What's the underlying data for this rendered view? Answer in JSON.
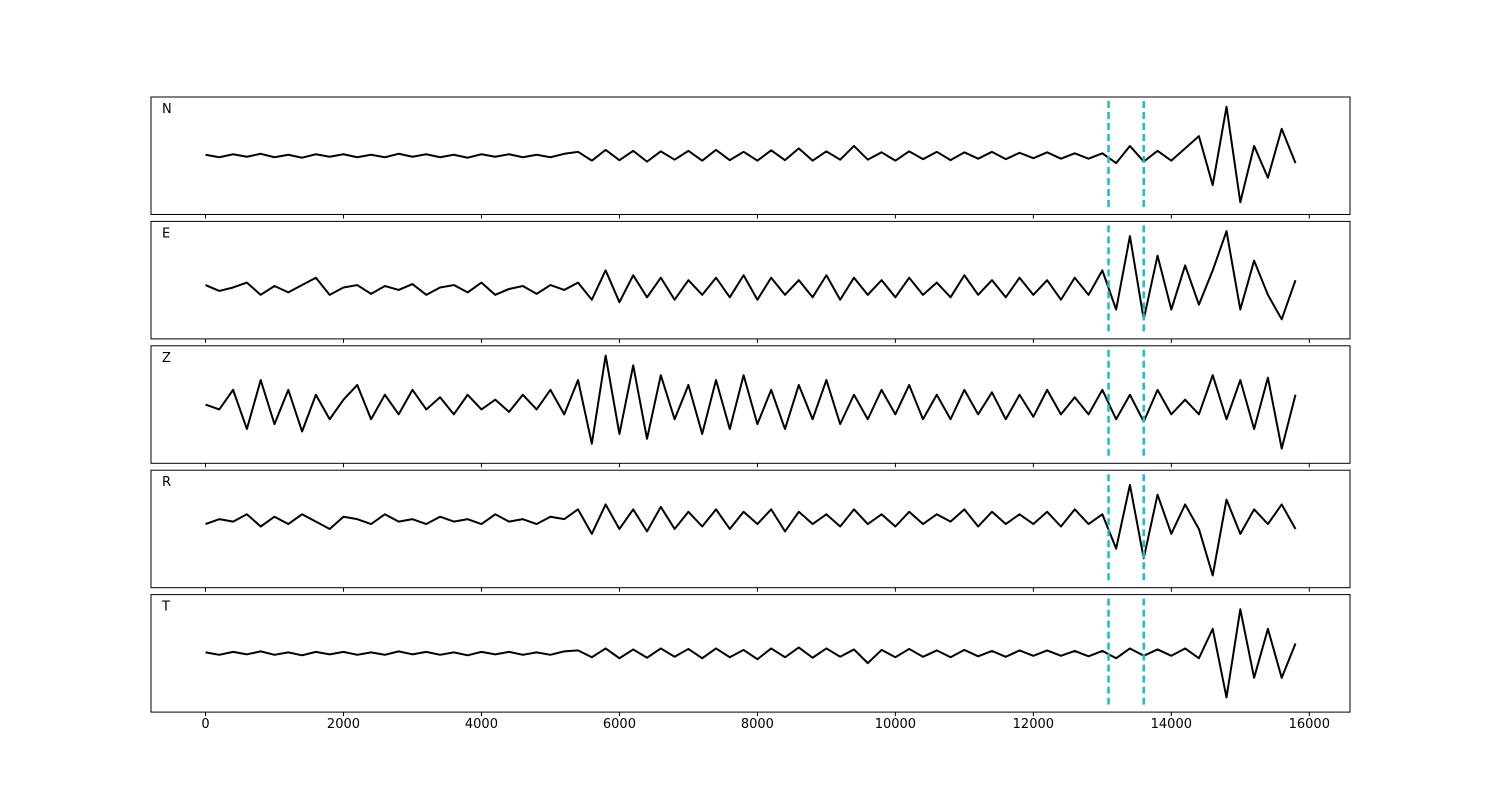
{
  "chart_data": [
    {
      "type": "line",
      "label": "N",
      "x": [
        0,
        200,
        400,
        600,
        800,
        1000,
        1200,
        1400,
        1600,
        1800,
        2000,
        2200,
        2400,
        2600,
        2800,
        3000,
        3200,
        3400,
        3600,
        3800,
        4000,
        4200,
        4400,
        4600,
        4800,
        5000,
        5200,
        5400,
        5600,
        5800,
        6000,
        6200,
        6400,
        6600,
        6800,
        7000,
        7200,
        7400,
        7600,
        7800,
        8000,
        8200,
        8400,
        8600,
        8800,
        9000,
        9200,
        9400,
        9600,
        9800,
        10000,
        10200,
        10400,
        10600,
        10800,
        11000,
        11200,
        11400,
        11600,
        11800,
        12000,
        12200,
        12400,
        12600,
        12800,
        13000,
        13200,
        13400,
        13600,
        13800,
        14000,
        14200,
        14400,
        14600,
        14800,
        15000,
        15200,
        15400,
        15600,
        15800
      ],
      "series": [
        {
          "color": "#000000",
          "values": [
            0.02,
            -0.03,
            0.03,
            -0.02,
            0.04,
            -0.03,
            0.02,
            -0.04,
            0.03,
            -0.02,
            0.03,
            -0.03,
            0.02,
            -0.03,
            0.04,
            -0.02,
            0.03,
            -0.03,
            0.02,
            -0.04,
            0.03,
            -0.02,
            0.03,
            -0.03,
            0.02,
            -0.03,
            0.04,
            0.08,
            -0.1,
            0.12,
            -0.09,
            0.1,
            -0.12,
            0.09,
            -0.08,
            0.1,
            -0.1,
            0.12,
            -0.09,
            0.08,
            -0.1,
            0.11,
            -0.09,
            0.15,
            -0.1,
            0.09,
            -0.08,
            0.2,
            -0.08,
            0.07,
            -0.1,
            0.09,
            -0.07,
            0.08,
            -0.09,
            0.07,
            -0.06,
            0.08,
            -0.07,
            0.06,
            -0.05,
            0.07,
            -0.06,
            0.05,
            -0.06,
            0.05,
            -0.15,
            0.2,
            -0.12,
            0.1,
            -0.1,
            0.15,
            0.4,
            -0.6,
            1.0,
            -0.95,
            0.2,
            -0.45,
            0.55,
            -0.15
          ]
        }
      ],
      "vlines": [
        13090,
        13600
      ],
      "vline_color": "#17becf",
      "xlim": [
        -790,
        16590
      ],
      "ylim": [
        -1.2,
        1.2
      ]
    },
    {
      "type": "line",
      "label": "E",
      "x": [
        0,
        200,
        400,
        600,
        800,
        1000,
        1200,
        1400,
        1600,
        1800,
        2000,
        2200,
        2400,
        2600,
        2800,
        3000,
        3200,
        3400,
        3600,
        3800,
        4000,
        4200,
        4400,
        4600,
        4800,
        5000,
        5200,
        5400,
        5600,
        5800,
        6000,
        6200,
        6400,
        6600,
        6800,
        7000,
        7200,
        7400,
        7600,
        7800,
        8000,
        8200,
        8400,
        8600,
        8800,
        9000,
        9200,
        9400,
        9600,
        9800,
        10000,
        10200,
        10400,
        10600,
        10800,
        11000,
        11200,
        11400,
        11600,
        11800,
        12000,
        12200,
        12400,
        12600,
        12800,
        13000,
        13200,
        13400,
        13600,
        13800,
        14000,
        14200,
        14400,
        14600,
        14800,
        15000,
        15200,
        15400,
        15600,
        15800
      ],
      "series": [
        {
          "color": "#000000",
          "values": [
            -0.1,
            -0.22,
            -0.15,
            -0.05,
            -0.3,
            -0.12,
            -0.25,
            -0.1,
            0.05,
            -0.3,
            -0.15,
            -0.1,
            -0.28,
            -0.12,
            -0.2,
            -0.08,
            -0.3,
            -0.15,
            -0.1,
            -0.25,
            -0.05,
            -0.3,
            -0.18,
            -0.12,
            -0.28,
            -0.1,
            -0.2,
            -0.05,
            -0.4,
            0.2,
            -0.45,
            0.1,
            -0.35,
            0.05,
            -0.4,
            0.0,
            -0.3,
            0.05,
            -0.35,
            0.1,
            -0.4,
            0.05,
            -0.3,
            0.0,
            -0.35,
            0.1,
            -0.4,
            0.05,
            -0.3,
            0.0,
            -0.35,
            0.05,
            -0.3,
            -0.05,
            -0.35,
            0.1,
            -0.3,
            0.0,
            -0.35,
            0.05,
            -0.3,
            0.0,
            -0.4,
            0.05,
            -0.3,
            0.2,
            -0.6,
            0.9,
            -0.8,
            0.5,
            -0.6,
            0.3,
            -0.5,
            0.2,
            1.0,
            -0.6,
            0.4,
            -0.3,
            -0.8,
            0.0
          ]
        }
      ],
      "vlines": [
        13090,
        13600
      ],
      "vline_color": "#17becf",
      "xlim": [
        -790,
        16590
      ],
      "ylim": [
        -1.2,
        1.2
      ]
    },
    {
      "type": "line",
      "label": "Z",
      "x": [
        0,
        200,
        400,
        600,
        800,
        1000,
        1200,
        1400,
        1600,
        1800,
        2000,
        2200,
        2400,
        2600,
        2800,
        3000,
        3200,
        3400,
        3600,
        3800,
        4000,
        4200,
        4400,
        4600,
        4800,
        5000,
        5200,
        5400,
        5600,
        5800,
        6000,
        6200,
        6400,
        6600,
        6800,
        7000,
        7200,
        7400,
        7600,
        7800,
        8000,
        8200,
        8400,
        8600,
        8800,
        9000,
        9200,
        9400,
        9600,
        9800,
        10000,
        10200,
        10400,
        10600,
        10800,
        11000,
        11200,
        11400,
        11600,
        11800,
        12000,
        12200,
        12400,
        12600,
        12800,
        13000,
        13200,
        13400,
        13600,
        13800,
        14000,
        14200,
        14400,
        14600,
        14800,
        15000,
        15200,
        15400,
        15600,
        15800
      ],
      "series": [
        {
          "color": "#000000",
          "values": [
            0.0,
            -0.1,
            0.3,
            -0.5,
            0.5,
            -0.4,
            0.3,
            -0.55,
            0.2,
            -0.3,
            0.1,
            0.4,
            -0.3,
            0.2,
            -0.2,
            0.3,
            -0.1,
            0.15,
            -0.2,
            0.2,
            -0.1,
            0.1,
            -0.15,
            0.2,
            -0.1,
            0.3,
            -0.2,
            0.5,
            -0.8,
            1.0,
            -0.6,
            0.8,
            -0.7,
            0.6,
            -0.3,
            0.4,
            -0.6,
            0.5,
            -0.5,
            0.6,
            -0.4,
            0.3,
            -0.5,
            0.4,
            -0.3,
            0.5,
            -0.4,
            0.2,
            -0.3,
            0.3,
            -0.2,
            0.4,
            -0.3,
            0.2,
            -0.3,
            0.3,
            -0.2,
            0.25,
            -0.3,
            0.2,
            -0.25,
            0.3,
            -0.2,
            0.15,
            -0.2,
            0.3,
            -0.3,
            0.2,
            -0.35,
            0.3,
            -0.2,
            0.1,
            -0.2,
            0.6,
            -0.3,
            0.5,
            -0.5,
            0.55,
            -0.9,
            0.2
          ]
        }
      ],
      "vlines": [
        13090,
        13600
      ],
      "vline_color": "#17becf",
      "xlim": [
        -790,
        16590
      ],
      "ylim": [
        -1.2,
        1.2
      ]
    },
    {
      "type": "line",
      "label": "R",
      "x": [
        0,
        200,
        400,
        600,
        800,
        1000,
        1200,
        1400,
        1600,
        1800,
        2000,
        2200,
        2400,
        2600,
        2800,
        3000,
        3200,
        3400,
        3600,
        3800,
        4000,
        4200,
        4400,
        4600,
        4800,
        5000,
        5200,
        5400,
        5600,
        5800,
        6000,
        6200,
        6400,
        6600,
        6800,
        7000,
        7200,
        7400,
        7600,
        7800,
        8000,
        8200,
        8400,
        8600,
        8800,
        9000,
        9200,
        9400,
        9600,
        9800,
        10000,
        10200,
        10400,
        10600,
        10800,
        11000,
        11200,
        11400,
        11600,
        11800,
        12000,
        12200,
        12400,
        12600,
        12800,
        13000,
        13200,
        13400,
        13600,
        13800,
        14000,
        14200,
        14400,
        14600,
        14800,
        15000,
        15200,
        15400,
        15600,
        15800
      ],
      "series": [
        {
          "color": "#000000",
          "values": [
            0.1,
            0.2,
            0.15,
            0.3,
            0.05,
            0.25,
            0.1,
            0.3,
            0.15,
            0.0,
            0.25,
            0.2,
            0.1,
            0.3,
            0.15,
            0.2,
            0.1,
            0.25,
            0.15,
            0.2,
            0.1,
            0.3,
            0.15,
            0.2,
            0.1,
            0.25,
            0.2,
            0.4,
            -0.1,
            0.5,
            0.0,
            0.4,
            -0.05,
            0.45,
            0.0,
            0.35,
            0.05,
            0.4,
            0.0,
            0.35,
            0.1,
            0.4,
            -0.05,
            0.35,
            0.1,
            0.3,
            0.05,
            0.4,
            0.1,
            0.3,
            0.05,
            0.35,
            0.1,
            0.3,
            0.15,
            0.4,
            0.05,
            0.35,
            0.1,
            0.3,
            0.1,
            0.35,
            0.05,
            0.4,
            0.1,
            0.3,
            -0.4,
            0.9,
            -0.6,
            0.7,
            -0.1,
            0.5,
            0.0,
            -0.95,
            0.6,
            -0.1,
            0.4,
            0.1,
            0.5,
            0.0
          ]
        }
      ],
      "vlines": [
        13090,
        13600
      ],
      "vline_color": "#17becf",
      "xlim": [
        -790,
        16590
      ],
      "ylim": [
        -1.2,
        1.2
      ]
    },
    {
      "type": "line",
      "label": "T",
      "x": [
        0,
        200,
        400,
        600,
        800,
        1000,
        1200,
        1400,
        1600,
        1800,
        2000,
        2200,
        2400,
        2600,
        2800,
        3000,
        3200,
        3400,
        3600,
        3800,
        4000,
        4200,
        4400,
        4600,
        4800,
        5000,
        5200,
        5400,
        5600,
        5800,
        6000,
        6200,
        6400,
        6600,
        6800,
        7000,
        7200,
        7400,
        7600,
        7800,
        8000,
        8200,
        8400,
        8600,
        8800,
        9000,
        9200,
        9400,
        9600,
        9800,
        10000,
        10200,
        10400,
        10600,
        10800,
        11000,
        11200,
        11400,
        11600,
        11800,
        12000,
        12200,
        12400,
        12600,
        12800,
        13000,
        13200,
        13400,
        13600,
        13800,
        14000,
        14200,
        14400,
        14600,
        14800,
        15000,
        15200,
        15400,
        15600,
        15800
      ],
      "series": [
        {
          "color": "#000000",
          "values": [
            0.02,
            -0.03,
            0.03,
            -0.02,
            0.04,
            -0.03,
            0.02,
            -0.04,
            0.03,
            -0.02,
            0.03,
            -0.03,
            0.02,
            -0.03,
            0.04,
            -0.02,
            0.03,
            -0.03,
            0.02,
            -0.04,
            0.03,
            -0.02,
            0.03,
            -0.03,
            0.02,
            -0.03,
            0.04,
            0.06,
            -0.08,
            0.1,
            -0.1,
            0.08,
            -0.09,
            0.1,
            -0.07,
            0.09,
            -0.1,
            0.1,
            -0.08,
            0.07,
            -0.12,
            0.1,
            -0.08,
            0.12,
            -0.09,
            0.1,
            -0.07,
            0.08,
            -0.2,
            0.07,
            -0.08,
            0.09,
            -0.07,
            0.06,
            -0.08,
            0.07,
            -0.06,
            0.05,
            -0.07,
            0.06,
            -0.05,
            0.06,
            -0.05,
            0.05,
            -0.06,
            0.05,
            -0.1,
            0.1,
            -0.05,
            0.08,
            -0.05,
            0.1,
            -0.1,
            0.5,
            -0.9,
            0.9,
            -0.5,
            0.5,
            -0.5,
            0.2
          ]
        }
      ],
      "vlines": [
        13090,
        13600
      ],
      "vline_color": "#17becf",
      "xlim": [
        -790,
        16590
      ],
      "ylim": [
        -1.2,
        1.2
      ],
      "xticks": [
        0,
        2000,
        4000,
        6000,
        8000,
        10000,
        12000,
        14000,
        16000
      ]
    }
  ]
}
